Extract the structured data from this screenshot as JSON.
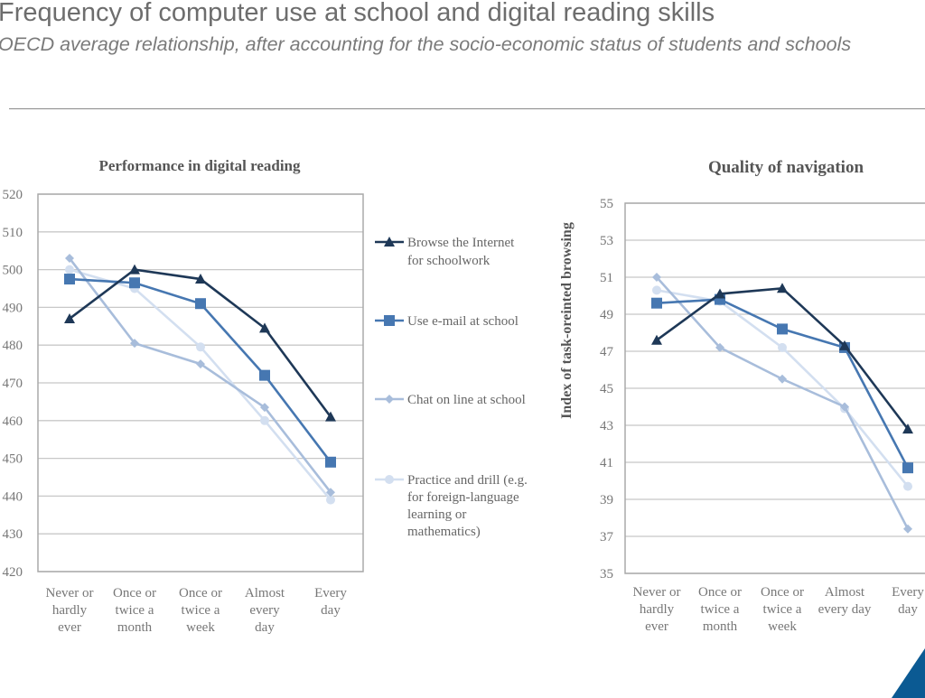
{
  "header": {
    "title": "Frequency of computer use at school and digital reading skills",
    "subtitle": "OECD average relationship, after accounting for the socio-economic status of students and schools"
  },
  "colors": {
    "browse": "#1e3857",
    "email": "#4677b1",
    "chat": "#a8bddb",
    "practice": "#d3dff0",
    "corner_accent": "#0b5a93"
  },
  "legend": [
    {
      "series": "browse",
      "lines": [
        "Browse the Internet",
        "for schoolwork"
      ],
      "marker": "triangle"
    },
    {
      "series": "email",
      "lines": [
        "Use e-mail at school"
      ],
      "marker": "square"
    },
    {
      "series": "chat",
      "lines": [
        "Chat on line at school"
      ],
      "marker": "diamond"
    },
    {
      "series": "practice",
      "lines": [
        "Practice and drill (e.g.",
        "for foreign-language",
        "learning or",
        "mathematics)"
      ],
      "marker": "circle"
    }
  ],
  "chart_data": [
    {
      "type": "line",
      "title": "Performance in digital reading",
      "ylabel": "",
      "ylim": [
        420,
        520
      ],
      "yticks": [
        420,
        430,
        440,
        450,
        460,
        470,
        480,
        490,
        500,
        510,
        520
      ],
      "grid": true,
      "legend_position": "right",
      "categories": [
        [
          "Never or",
          "hardly",
          "ever"
        ],
        [
          "Once or",
          "twice a",
          "month"
        ],
        [
          "Once or",
          "twice a",
          "week"
        ],
        [
          "Almost",
          "every",
          "day"
        ],
        [
          "Every",
          "day"
        ]
      ],
      "series": [
        {
          "key": "browse",
          "name": "Browse the Internet for schoolwork",
          "values": [
            487,
            500,
            497.5,
            484.5,
            461
          ]
        },
        {
          "key": "email",
          "name": "Use e-mail at school",
          "values": [
            497.5,
            496.5,
            491,
            472,
            449
          ]
        },
        {
          "key": "chat",
          "name": "Chat on line at school",
          "values": [
            503,
            480.5,
            475,
            463.5,
            441
          ]
        },
        {
          "key": "practice",
          "name": "Practice and drill (e.g. for foreign-language learning or mathematics)",
          "values": [
            500,
            495,
            479.5,
            460,
            439
          ]
        }
      ]
    },
    {
      "type": "line",
      "title": "Quality of navigation",
      "ylabel": "Index of task-oreinted browsing",
      "ylim": [
        35,
        55
      ],
      "yticks": [
        35,
        37,
        39,
        41,
        43,
        45,
        47,
        49,
        51,
        53,
        55
      ],
      "grid": true,
      "categories": [
        [
          "Never or",
          "hardly",
          "ever"
        ],
        [
          "Once or",
          "twice a",
          "month"
        ],
        [
          "Once or",
          "twice a",
          "week"
        ],
        [
          "Almost",
          "every day"
        ],
        [
          "Every",
          "day"
        ]
      ],
      "series": [
        {
          "key": "browse",
          "name": "Browse the Internet for schoolwork",
          "values": [
            47.6,
            50.1,
            50.4,
            47.3,
            42.8
          ]
        },
        {
          "key": "email",
          "name": "Use e-mail at school",
          "values": [
            49.6,
            49.8,
            48.2,
            47.2,
            40.7
          ]
        },
        {
          "key": "chat",
          "name": "Chat on line at school",
          "values": [
            51.0,
            47.2,
            45.5,
            44.0,
            37.4
          ]
        },
        {
          "key": "practice",
          "name": "Practice and drill (e.g. for foreign-language learning or mathematics)",
          "values": [
            50.3,
            49.7,
            47.2,
            43.9,
            39.7
          ]
        }
      ]
    }
  ]
}
